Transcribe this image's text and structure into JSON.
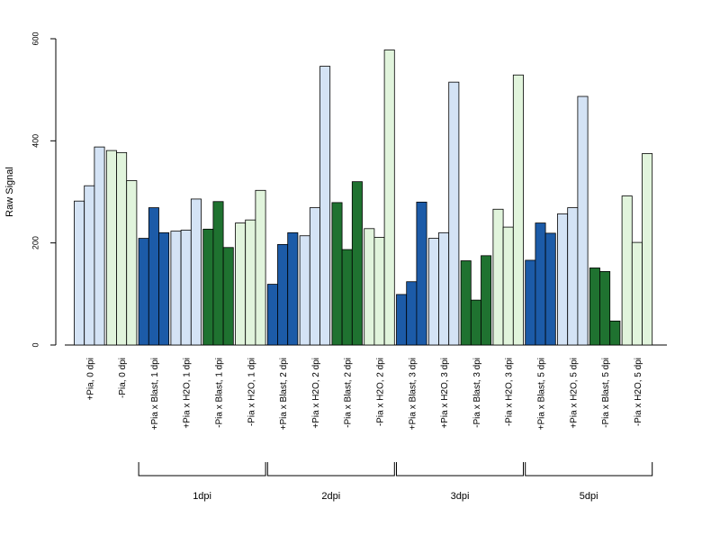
{
  "chart_data": {
    "type": "bar",
    "title": "",
    "xlabel": "",
    "ylabel": "Raw Signal",
    "ylim": [
      0,
      600
    ],
    "yticks": [
      0,
      200,
      400,
      600
    ],
    "grid": false,
    "legend": "none",
    "colors": {
      "blue_light": "#d4e3f5",
      "blue_dark": "#1c5ba8",
      "green_light": "#e1f4dc",
      "green_dark": "#1f7230"
    },
    "groups": [
      {
        "label": "+Pia, 0 dpi",
        "color": "blue_light",
        "values": [
          282,
          312,
          388
        ]
      },
      {
        "label": "-Pia, 0 dpi",
        "color": "green_light",
        "values": [
          381,
          377,
          322
        ]
      },
      {
        "label": "+Pia x Blast, 1 dpi",
        "color": "blue_dark",
        "values": [
          209,
          269,
          220
        ]
      },
      {
        "label": "+Pia x H2O, 1 dpi",
        "color": "blue_light",
        "values": [
          223,
          225,
          286
        ]
      },
      {
        "label": "-Pia x Blast, 1 dpi",
        "color": "green_dark",
        "values": [
          227,
          281,
          191
        ]
      },
      {
        "label": "-Pia x H2O, 1 dpi",
        "color": "green_light",
        "values": [
          239,
          245,
          303
        ]
      },
      {
        "label": "+Pia x Blast, 2 dpi",
        "color": "blue_dark",
        "values": [
          119,
          197,
          220
        ]
      },
      {
        "label": "+Pia x H2O, 2 dpi",
        "color": "blue_light",
        "values": [
          214,
          269,
          546
        ]
      },
      {
        "label": "-Pia x Blast, 2 dpi",
        "color": "green_dark",
        "values": [
          279,
          187,
          320
        ]
      },
      {
        "label": "-Pia x H2O, 2 dpi",
        "color": "green_light",
        "values": [
          228,
          211,
          578
        ]
      },
      {
        "label": "+Pia x Blast, 3 dpi",
        "color": "blue_dark",
        "values": [
          99,
          124,
          280
        ]
      },
      {
        "label": "+Pia x H2O, 3 dpi",
        "color": "blue_light",
        "values": [
          209,
          220,
          515
        ]
      },
      {
        "label": "-Pia x Blast, 3 dpi",
        "color": "green_dark",
        "values": [
          165,
          88,
          175
        ]
      },
      {
        "label": "-Pia x H2O, 3 dpi",
        "color": "green_light",
        "values": [
          266,
          231,
          529
        ]
      },
      {
        "label": "+Pia x Blast, 5 dpi",
        "color": "blue_dark",
        "values": [
          166,
          239,
          219
        ]
      },
      {
        "label": "+Pia x H2O, 5 dpi",
        "color": "blue_light",
        "values": [
          257,
          269,
          487
        ]
      },
      {
        "label": "-Pia x Blast, 5 dpi",
        "color": "green_dark",
        "values": [
          151,
          144,
          47
        ]
      },
      {
        "label": "-Pia x H2O, 5 dpi",
        "color": "green_light",
        "values": [
          292,
          201,
          375
        ]
      }
    ],
    "brackets": [
      {
        "label": "1dpi",
        "from_group": 2,
        "to_group": 5
      },
      {
        "label": "2dpi",
        "from_group": 6,
        "to_group": 9
      },
      {
        "label": "3dpi",
        "from_group": 10,
        "to_group": 13
      },
      {
        "label": "5dpi",
        "from_group": 14,
        "to_group": 17
      }
    ]
  }
}
